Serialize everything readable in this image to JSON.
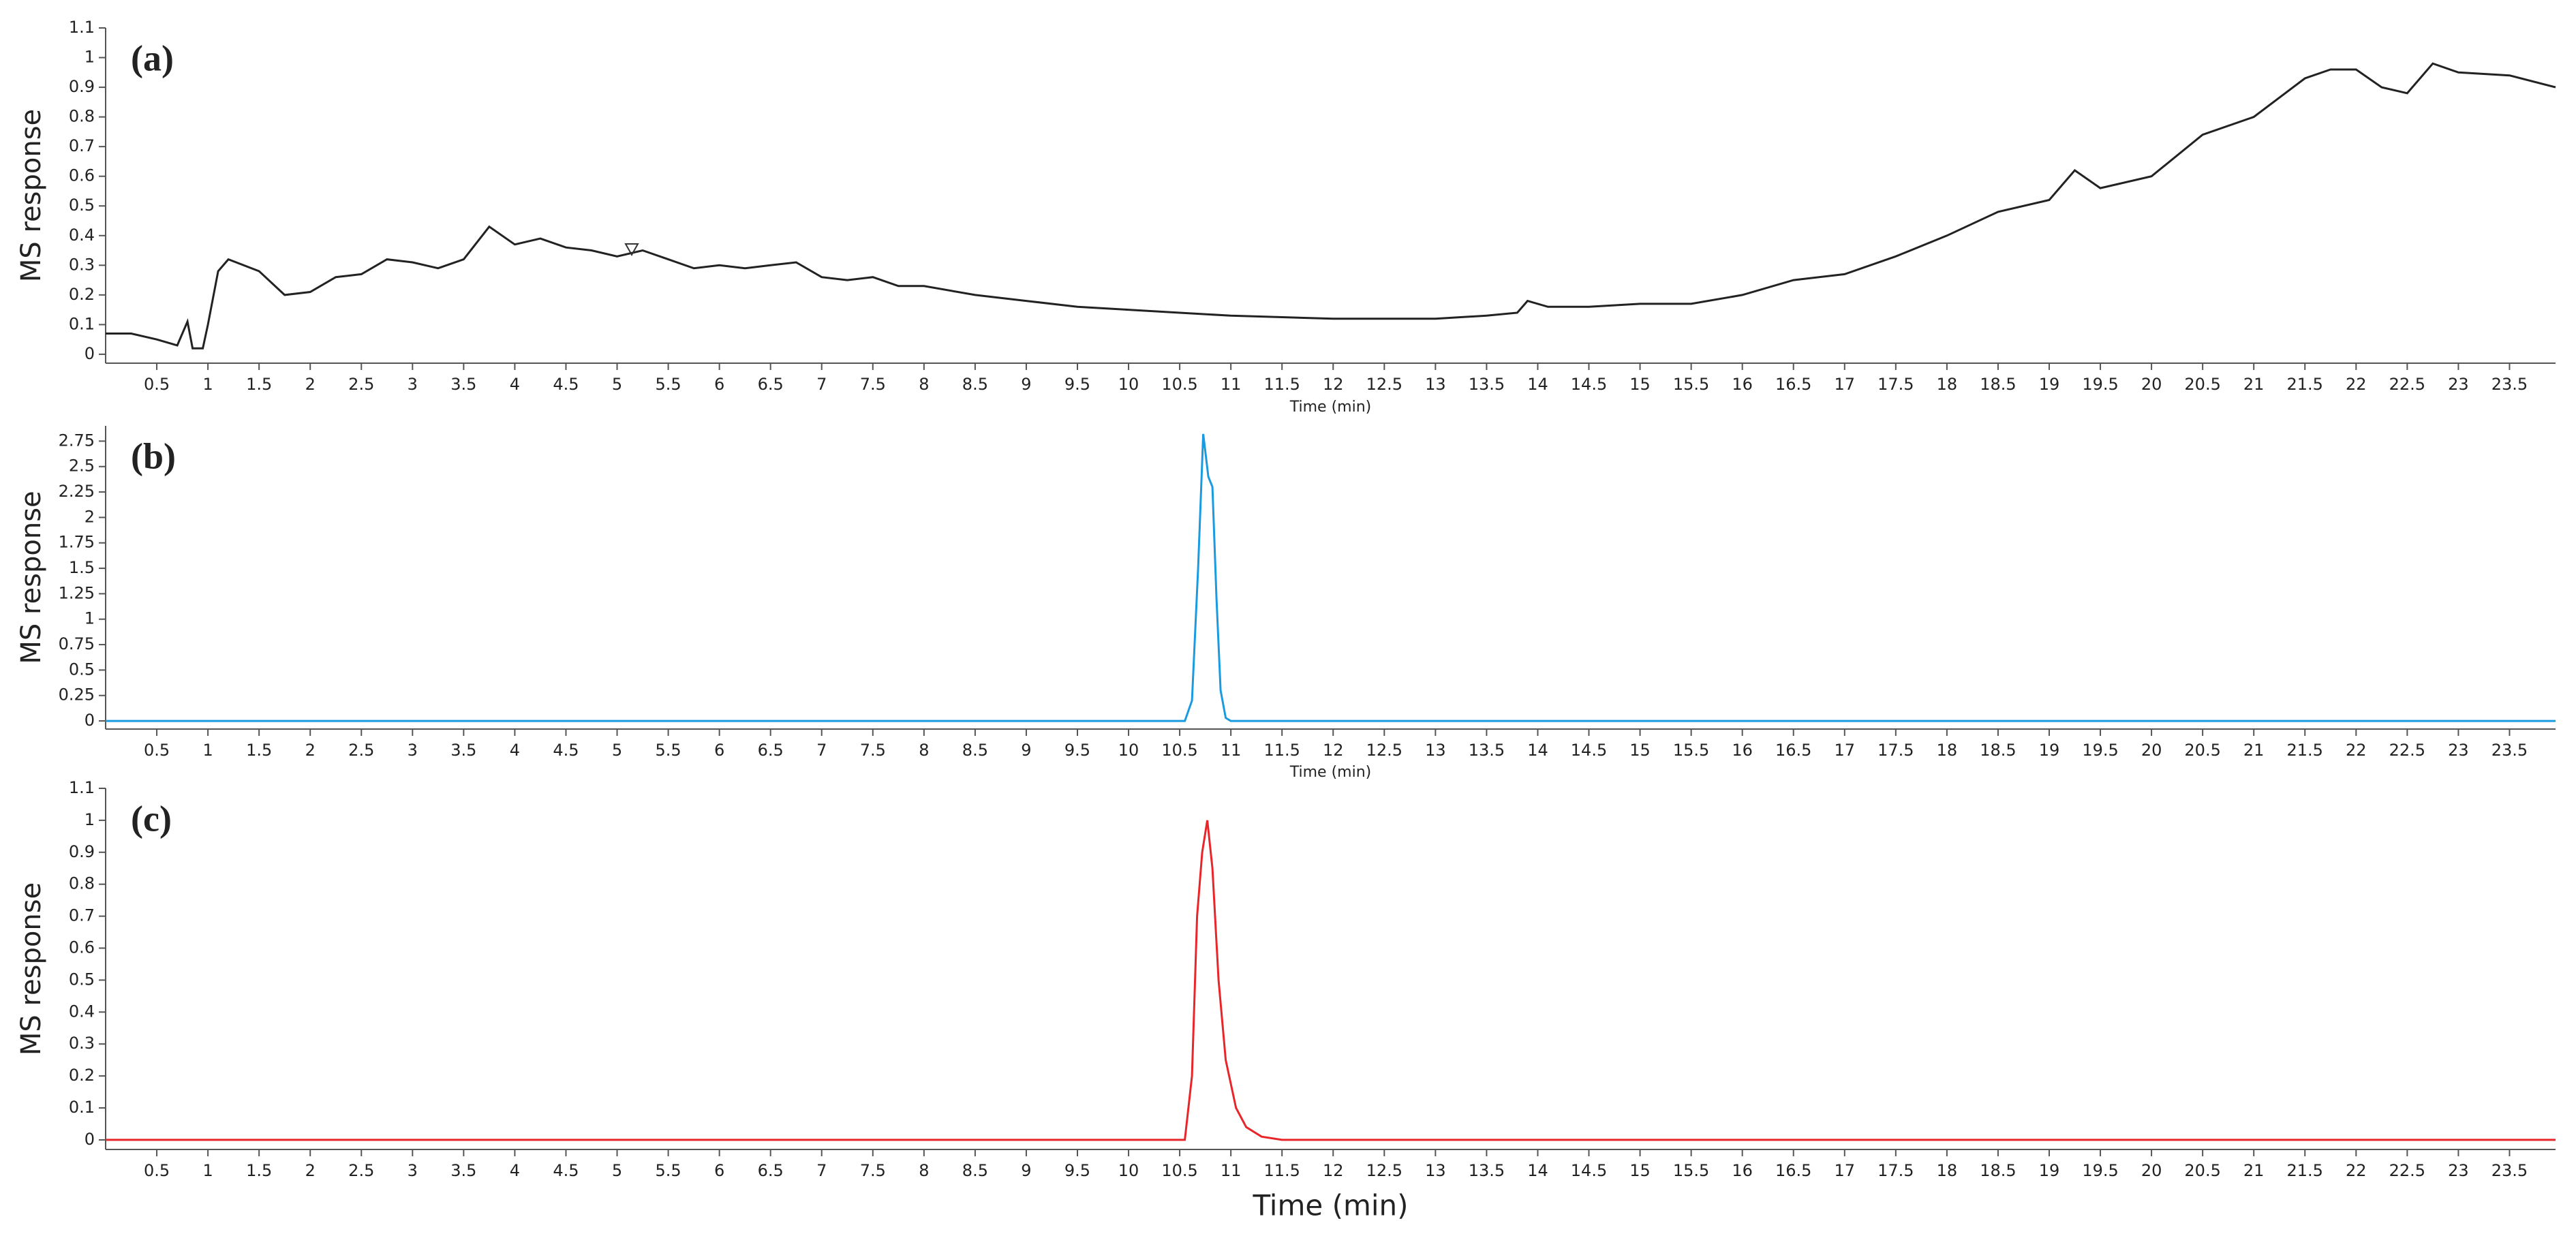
{
  "chart_data": [
    {
      "type": "line",
      "title": "(a)",
      "ylabel": "MS response",
      "xlabel": "Time (min)",
      "color": "#222222",
      "x": [
        0,
        0.25,
        0.5,
        0.7,
        0.8,
        0.85,
        0.95,
        1.0,
        1.1,
        1.2,
        1.5,
        1.75,
        2,
        2.25,
        2.5,
        2.75,
        3,
        3.25,
        3.5,
        3.75,
        4,
        4.25,
        4.5,
        4.75,
        5,
        5.25,
        5.5,
        5.75,
        6,
        6.25,
        6.5,
        6.75,
        7,
        7.25,
        7.5,
        7.75,
        8,
        8.5,
        9,
        9.5,
        10,
        10.5,
        11,
        11.5,
        12,
        12.5,
        13,
        13.5,
        13.8,
        13.9,
        14.1,
        14.5,
        15,
        15.5,
        16,
        16.5,
        17,
        17.5,
        18,
        18.5,
        19,
        19.25,
        19.5,
        20,
        20.5,
        21,
        21.5,
        21.75,
        22,
        22.25,
        22.5,
        22.75,
        23,
        23.5,
        23.95
      ],
      "values": [
        0.07,
        0.07,
        0.05,
        0.03,
        0.11,
        0.02,
        0.02,
        0.1,
        0.28,
        0.32,
        0.28,
        0.2,
        0.21,
        0.26,
        0.27,
        0.32,
        0.31,
        0.29,
        0.32,
        0.43,
        0.37,
        0.39,
        0.36,
        0.35,
        0.33,
        0.35,
        0.32,
        0.29,
        0.3,
        0.29,
        0.3,
        0.31,
        0.26,
        0.25,
        0.26,
        0.23,
        0.23,
        0.2,
        0.18,
        0.16,
        0.15,
        0.14,
        0.13,
        0.125,
        0.12,
        0.12,
        0.12,
        0.13,
        0.14,
        0.18,
        0.16,
        0.16,
        0.17,
        0.17,
        0.2,
        0.25,
        0.27,
        0.33,
        0.4,
        0.48,
        0.52,
        0.62,
        0.56,
        0.6,
        0.74,
        0.8,
        0.93,
        0.96,
        0.96,
        0.9,
        0.88,
        0.98,
        0.95,
        0.94,
        0.9
      ],
      "xlim": [
        0,
        23.95
      ],
      "ylim": [
        -0.03,
        1.1
      ],
      "yticks": [
        0,
        0.1,
        0.2,
        0.3,
        0.4,
        0.5,
        0.6,
        0.7,
        0.8,
        0.9,
        1,
        1.1
      ],
      "xticks": [
        0.5,
        1,
        1.5,
        2,
        2.5,
        3,
        3.5,
        4,
        4.5,
        5,
        5.5,
        6,
        6.5,
        7,
        7.5,
        8,
        8.5,
        9,
        9.5,
        10,
        10.5,
        11,
        11.5,
        12,
        12.5,
        13,
        13.5,
        14,
        14.5,
        15,
        15.5,
        16,
        16.5,
        17,
        17.5,
        18,
        18.5,
        19,
        19.5,
        20,
        20.5,
        21,
        21.5,
        22,
        22.5,
        23,
        23.5
      ]
    },
    {
      "type": "line",
      "title": "(b)",
      "ylabel": "MS response",
      "xlabel": "Time (min)",
      "color": "#1a9be0",
      "x": [
        0,
        10.55,
        10.62,
        10.68,
        10.73,
        10.78,
        10.82,
        10.86,
        10.9,
        10.95,
        11.0,
        23.95
      ],
      "values": [
        0,
        0,
        0.2,
        1.5,
        2.82,
        2.4,
        2.3,
        1.2,
        0.3,
        0.03,
        0,
        0
      ],
      "xlim": [
        0,
        23.95
      ],
      "ylim": [
        -0.08,
        2.9
      ],
      "yticks": [
        0,
        0.25,
        0.5,
        0.75,
        1,
        1.25,
        1.5,
        1.75,
        2,
        2.25,
        2.5,
        2.75
      ],
      "xticks": [
        0.5,
        1,
        1.5,
        2,
        2.5,
        3,
        3.5,
        4,
        4.5,
        5,
        5.5,
        6,
        6.5,
        7,
        7.5,
        8,
        8.5,
        9,
        9.5,
        10,
        10.5,
        11,
        11.5,
        12,
        12.5,
        13,
        13.5,
        14,
        14.5,
        15,
        15.5,
        16,
        16.5,
        17,
        17.5,
        18,
        18.5,
        19,
        19.5,
        20,
        20.5,
        21,
        21.5,
        22,
        22.5,
        23,
        23.5
      ]
    },
    {
      "type": "line",
      "title": "(c)",
      "ylabel": "MS response",
      "xlabel": "Time (min)",
      "color": "#e8262a",
      "x": [
        0,
        10.55,
        10.62,
        10.67,
        10.72,
        10.77,
        10.82,
        10.88,
        10.95,
        11.05,
        11.15,
        11.3,
        11.5,
        23.95
      ],
      "values": [
        0,
        0,
        0.2,
        0.7,
        0.9,
        1.0,
        0.85,
        0.5,
        0.25,
        0.1,
        0.04,
        0.01,
        0,
        0
      ],
      "xlim": [
        0,
        23.95
      ],
      "ylim": [
        -0.03,
        1.1
      ],
      "yticks": [
        0,
        0.1,
        0.2,
        0.3,
        0.4,
        0.5,
        0.6,
        0.7,
        0.8,
        0.9,
        1,
        1.1
      ],
      "xticks": [
        0.5,
        1,
        1.5,
        2,
        2.5,
        3,
        3.5,
        4,
        4.5,
        5,
        5.5,
        6,
        6.5,
        7,
        7.5,
        8,
        8.5,
        9,
        9.5,
        10,
        10.5,
        11,
        11.5,
        12,
        12.5,
        13,
        13.5,
        14,
        14.5,
        15,
        15.5,
        16,
        16.5,
        17,
        17.5,
        18,
        18.5,
        19,
        19.5,
        20,
        20.5,
        21,
        21.5,
        22,
        22.5,
        23,
        23.5
      ]
    }
  ]
}
